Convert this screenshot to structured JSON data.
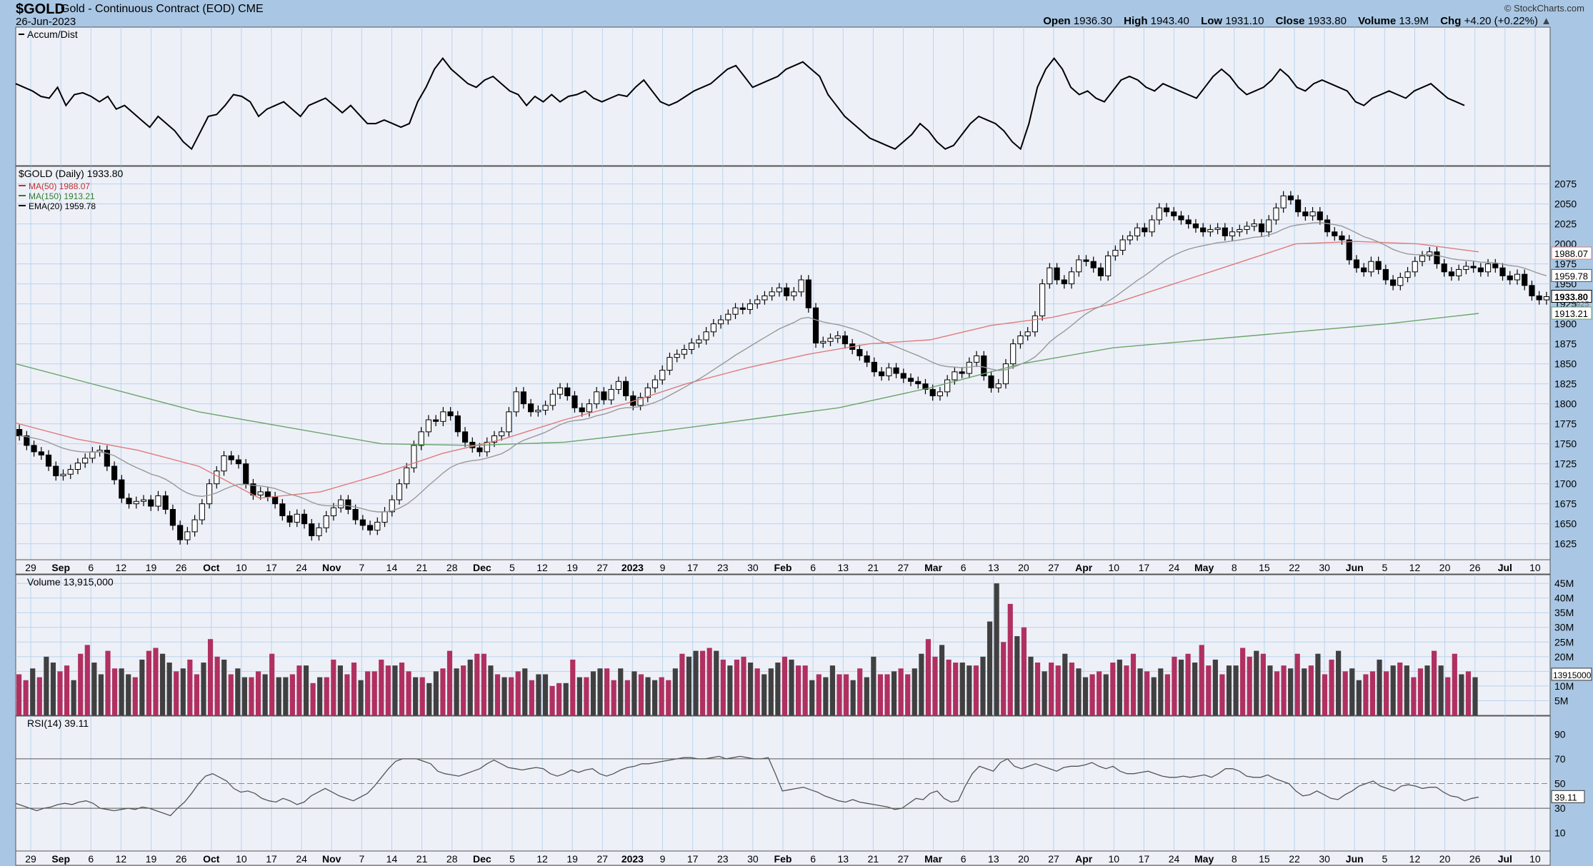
{
  "header": {
    "symbol": "$GOLD",
    "name": "Gold - Continuous Contract (EOD)",
    "exchange": "CME",
    "date": "26-Jun-2023",
    "watermark": "© StockCharts.com",
    "open_label": "Open",
    "open": "1936.30",
    "high_label": "High",
    "high": "1943.40",
    "low_label": "Low",
    "low": "1931.10",
    "close_label": "Close",
    "close": "1933.80",
    "volume_label": "Volume",
    "volume": "13.9M",
    "chg_label": "Chg",
    "chg": "+4.20 (+0.22%)",
    "chg_arrow": "up-arrow-icon"
  },
  "colors": {
    "background": "#a9c7e4",
    "panel": "#eef0f8",
    "grid": "#b9d4ec",
    "ma50": "#e07a7a",
    "ma150": "#6aa56a",
    "ema20": "#999999",
    "vol_up": "#b03060",
    "vol_down": "#404040"
  },
  "chart_data": {
    "type": "candlestick",
    "x_ticks": [
      "29",
      "Sep",
      "6",
      "12",
      "19",
      "26",
      "Oct",
      "10",
      "17",
      "24",
      "Nov",
      "7",
      "14",
      "21",
      "28",
      "Dec",
      "5",
      "12",
      "19",
      "27",
      "2023",
      "9",
      "17",
      "23",
      "30",
      "Feb",
      "6",
      "13",
      "21",
      "27",
      "Mar",
      "6",
      "13",
      "20",
      "27",
      "Apr",
      "10",
      "17",
      "24",
      "May",
      "8",
      "15",
      "22",
      "30",
      "Jun",
      "5",
      "12",
      "20",
      "26",
      "Jul",
      "10"
    ],
    "price_panel": {
      "title": "$GOLD (Daily) 1933.80",
      "legend": [
        {
          "label": "MA(50) 1988.07",
          "color": "#c03030"
        },
        {
          "label": "MA(150) 1913.21",
          "color": "#2e7d2e"
        },
        {
          "label": "EMA(20) 1959.78",
          "color": "#000000"
        }
      ],
      "y_ticks": [
        "2075",
        "2050",
        "2025",
        "2000",
        "1975",
        "1950",
        "1925",
        "1900",
        "1875",
        "1850",
        "1825",
        "1800",
        "1775",
        "1750",
        "1725",
        "1700",
        "1675",
        "1650",
        "1625"
      ],
      "ylim": [
        1614,
        2088
      ],
      "last_price": "1933.80",
      "ma50_label": "1988.07",
      "ema20_label": "1959.78",
      "ma150_label": "1913.21",
      "extra_label": "1925",
      "closes": [
        1760,
        1748,
        1740,
        1736,
        1722,
        1710,
        1712,
        1718,
        1726,
        1732,
        1740,
        1742,
        1722,
        1705,
        1682,
        1675,
        1678,
        1680,
        1672,
        1685,
        1668,
        1648,
        1630,
        1640,
        1655,
        1675,
        1700,
        1716,
        1735,
        1730,
        1725,
        1700,
        1686,
        1690,
        1684,
        1675,
        1660,
        1652,
        1662,
        1650,
        1635,
        1645,
        1660,
        1670,
        1680,
        1668,
        1655,
        1648,
        1642,
        1652,
        1665,
        1680,
        1700,
        1720,
        1748,
        1765,
        1780,
        1778,
        1790,
        1785,
        1765,
        1752,
        1745,
        1740,
        1752,
        1760,
        1765,
        1790,
        1815,
        1800,
        1790,
        1792,
        1798,
        1812,
        1820,
        1810,
        1795,
        1790,
        1800,
        1815,
        1805,
        1818,
        1828,
        1810,
        1798,
        1808,
        1820,
        1830,
        1842,
        1858,
        1862,
        1868,
        1876,
        1880,
        1890,
        1900,
        1905,
        1912,
        1920,
        1918,
        1925,
        1930,
        1935,
        1940,
        1945,
        1935,
        1940,
        1955,
        1920,
        1876,
        1878,
        1882,
        1885,
        1875,
        1868,
        1860,
        1852,
        1840,
        1835,
        1845,
        1838,
        1832,
        1828,
        1825,
        1818,
        1810,
        1815,
        1830,
        1840,
        1838,
        1852,
        1860,
        1835,
        1820,
        1825,
        1850,
        1875,
        1885,
        1890,
        1910,
        1950,
        1970,
        1955,
        1950,
        1965,
        1980,
        1978,
        1970,
        1960,
        1985,
        1992,
        2005,
        2010,
        2020,
        2015,
        2030,
        2045,
        2040,
        2035,
        2030,
        2025,
        2020,
        2015,
        2018,
        2020,
        2010,
        2015,
        2018,
        2022,
        2025,
        2015,
        2030,
        2045,
        2060,
        2055,
        2040,
        2035,
        2040,
        2030,
        2015,
        2010,
        2005,
        1980,
        1970,
        1965,
        1978,
        1968,
        1955,
        1948,
        1958,
        1965,
        1978,
        1985,
        1990,
        1975,
        1965,
        1960,
        1968,
        1972,
        1970,
        1965,
        1975,
        1970,
        1960,
        1955,
        1962,
        1948,
        1935,
        1930,
        1934
      ],
      "ma50_sample": [
        [
          0,
          1776
        ],
        [
          40,
          1756
        ],
        [
          80,
          1742
        ],
        [
          120,
          1722
        ],
        [
          160,
          1682
        ],
        [
          200,
          1690
        ],
        [
          240,
          1712
        ],
        [
          280,
          1738
        ],
        [
          320,
          1756
        ],
        [
          360,
          1780
        ],
        [
          400,
          1800
        ],
        [
          440,
          1825
        ],
        [
          480,
          1845
        ],
        [
          520,
          1862
        ],
        [
          560,
          1875
        ],
        [
          600,
          1880
        ],
        [
          640,
          1898
        ],
        [
          680,
          1908
        ],
        [
          720,
          1925
        ],
        [
          760,
          1950
        ],
        [
          800,
          1975
        ],
        [
          840,
          2000
        ],
        [
          880,
          2003
        ],
        [
          920,
          2000
        ],
        [
          960,
          1990
        ]
      ],
      "ma150_sample": [
        [
          0,
          1850
        ],
        [
          60,
          1820
        ],
        [
          120,
          1790
        ],
        [
          180,
          1770
        ],
        [
          240,
          1750
        ],
        [
          300,
          1748
        ],
        [
          360,
          1752
        ],
        [
          420,
          1765
        ],
        [
          480,
          1780
        ],
        [
          540,
          1795
        ],
        [
          600,
          1820
        ],
        [
          660,
          1850
        ],
        [
          720,
          1870
        ],
        [
          780,
          1880
        ],
        [
          840,
          1890
        ],
        [
          900,
          1900
        ],
        [
          960,
          1913
        ]
      ]
    },
    "accum_panel": {
      "title": "Accum/Dist",
      "values": [
        62,
        60,
        58,
        55,
        54,
        60,
        50,
        56,
        57,
        55,
        52,
        55,
        48,
        50,
        46,
        42,
        38,
        44,
        40,
        36,
        30,
        26,
        35,
        44,
        45,
        50,
        56,
        55,
        52,
        44,
        48,
        50,
        52,
        48,
        44,
        50,
        52,
        54,
        50,
        46,
        50,
        45,
        40,
        40,
        42,
        40,
        38,
        40,
        52,
        60,
        70,
        76,
        70,
        66,
        62,
        60,
        64,
        66,
        62,
        58,
        56,
        50,
        55,
        52,
        56,
        52,
        55,
        56,
        58,
        54,
        52,
        54,
        56,
        55,
        60,
        64,
        58,
        52,
        50,
        52,
        55,
        58,
        60,
        62,
        66,
        70,
        72,
        66,
        60,
        62,
        64,
        66,
        70,
        72,
        74,
        70,
        66,
        56,
        50,
        44,
        40,
        36,
        32,
        30,
        28,
        26,
        30,
        34,
        40,
        36,
        30,
        26,
        28,
        34,
        40,
        44,
        42,
        40,
        36,
        30,
        26,
        40,
        60,
        70,
        76,
        70,
        60,
        56,
        58,
        54,
        52,
        58,
        64,
        66,
        64,
        60,
        58,
        62,
        60,
        58,
        56,
        54,
        60,
        66,
        70,
        66,
        60,
        56,
        58,
        60,
        64,
        70,
        66,
        60,
        58,
        62,
        64,
        62,
        60,
        58,
        52,
        50,
        54,
        56,
        58,
        56,
        54,
        58,
        60,
        62,
        58,
        54,
        52,
        50
      ],
      "ylim": [
        20,
        90
      ]
    },
    "volume_panel": {
      "title": "Volume 13,915,000",
      "y_ticks": [
        "45M",
        "40M",
        "35M",
        "30M",
        "25M",
        "20M",
        "15M",
        "10M",
        "5M"
      ],
      "last_label": "13915000",
      "ylim": [
        0,
        46000000
      ],
      "values": [
        14,
        12,
        16,
        13,
        20,
        18,
        15,
        17,
        12,
        21,
        24,
        18,
        14,
        22,
        16,
        16,
        14,
        13,
        19,
        22,
        23,
        21,
        18,
        15,
        16,
        19,
        14,
        18,
        26,
        20,
        19,
        14,
        16,
        13,
        13,
        15,
        14,
        21,
        13,
        13,
        14,
        17,
        17,
        11,
        13,
        13,
        19,
        17,
        14,
        18,
        12,
        15,
        15,
        19,
        17,
        17,
        18,
        15,
        13,
        13,
        11,
        15,
        16,
        22,
        16,
        17,
        19,
        21,
        21,
        17,
        14,
        13,
        13,
        15,
        16,
        12,
        14,
        14,
        10,
        11,
        11,
        19,
        13,
        13,
        15,
        16,
        16,
        12,
        16,
        12,
        15,
        14,
        13,
        12,
        13,
        12,
        16,
        21,
        20,
        22,
        22,
        23,
        22,
        19,
        17,
        19,
        20,
        18,
        16,
        14,
        16,
        18,
        20,
        19,
        17,
        17,
        12,
        14,
        13,
        17,
        14,
        14,
        12,
        16,
        13,
        20,
        14,
        14,
        15,
        16,
        14,
        16,
        21,
        26,
        20,
        24,
        19,
        18,
        18,
        17,
        17,
        20,
        32,
        45,
        25,
        38,
        27,
        30,
        20,
        18,
        15,
        18,
        17,
        21,
        18,
        16,
        13,
        14,
        15,
        14,
        18,
        19,
        17,
        21,
        16,
        15,
        13,
        16,
        14,
        20,
        19,
        21,
        18,
        24,
        17,
        19,
        14,
        17,
        17,
        23,
        20,
        22,
        21,
        17,
        15,
        17,
        16,
        21,
        16,
        17,
        21,
        14,
        19,
        22,
        15,
        16,
        12,
        14,
        15,
        19,
        15,
        17,
        18,
        17,
        13,
        16,
        17,
        22,
        17,
        13,
        21,
        14,
        15,
        13
      ],
      "colors_up": [
        1,
        1,
        0,
        1,
        0,
        0,
        1,
        1,
        0,
        1,
        1,
        0,
        0,
        1,
        1,
        0,
        0,
        1,
        0,
        1,
        1,
        0,
        0,
        1,
        0,
        1,
        1,
        0,
        1,
        1,
        0,
        1,
        0,
        0,
        1,
        1,
        0,
        1,
        0,
        0,
        1,
        1,
        0,
        1,
        0,
        1,
        1,
        0,
        1,
        1,
        0,
        1,
        1,
        1,
        1,
        0,
        1,
        1,
        0,
        1,
        0,
        0,
        1,
        1,
        0,
        1,
        0,
        1,
        1,
        0,
        1,
        0,
        1,
        1,
        0,
        1,
        0,
        0,
        1,
        1,
        0,
        1,
        0,
        1,
        0,
        0,
        1,
        1,
        0,
        1,
        0,
        1,
        0,
        0,
        1,
        1,
        0,
        1,
        0,
        0,
        1,
        1,
        0,
        1,
        0,
        1,
        1,
        0,
        1,
        0,
        0,
        0,
        1,
        0,
        1,
        1,
        0,
        1,
        0,
        0,
        1,
        1,
        0,
        1,
        0,
        0,
        1,
        1,
        0,
        1,
        1,
        0,
        0,
        1,
        1,
        0,
        1,
        1,
        0,
        0,
        1,
        0,
        0,
        0,
        1,
        1,
        0,
        1,
        0,
        1,
        0,
        1,
        1,
        0,
        1,
        0,
        0,
        1,
        1,
        0,
        1,
        0,
        1,
        1,
        0,
        1,
        0,
        0,
        1,
        1,
        0,
        1,
        0,
        1,
        1,
        0,
        1,
        0,
        0,
        1,
        1,
        0,
        1,
        0,
        1,
        1,
        0,
        1,
        0,
        1,
        0,
        1,
        1,
        0,
        1,
        0,
        0,
        1,
        1,
        0,
        1,
        0,
        1,
        0,
        1,
        1,
        0,
        1,
        0,
        1,
        1,
        0,
        1,
        0
      ]
    },
    "rsi_panel": {
      "title": "RSI(14) 39.11",
      "y_ticks": [
        "90",
        "70",
        "50",
        "30",
        "10"
      ],
      "last_label": "39.11",
      "ylim": [
        0,
        100
      ],
      "values": [
        34,
        32,
        30,
        28,
        30,
        31,
        33,
        34,
        33,
        35,
        36,
        34,
        30,
        29,
        28,
        29,
        30,
        29,
        31,
        30,
        28,
        26,
        24,
        30,
        35,
        42,
        50,
        56,
        58,
        55,
        52,
        46,
        43,
        44,
        42,
        38,
        36,
        35,
        38,
        36,
        33,
        35,
        40,
        43,
        46,
        43,
        40,
        38,
        36,
        39,
        42,
        48,
        55,
        62,
        68,
        70,
        70,
        70,
        68,
        66,
        60,
        58,
        57,
        56,
        58,
        60,
        62,
        66,
        69,
        66,
        63,
        62,
        61,
        62,
        63,
        62,
        58,
        56,
        58,
        61,
        59,
        61,
        62,
        58,
        56,
        58,
        61,
        63,
        64,
        66,
        66,
        67,
        68,
        69,
        70,
        71,
        71,
        70,
        70,
        71,
        72,
        70,
        71,
        72,
        71,
        70,
        70,
        71,
        58,
        44,
        45,
        46,
        47,
        45,
        43,
        40,
        38,
        36,
        35,
        37,
        35,
        34,
        33,
        32,
        31,
        29,
        30,
        34,
        38,
        37,
        42,
        44,
        38,
        35,
        36,
        48,
        58,
        64,
        62,
        60,
        67,
        70,
        64,
        62,
        64,
        66,
        64,
        62,
        60,
        63,
        64,
        64,
        65,
        67,
        64,
        62,
        64,
        60,
        58,
        58,
        59,
        60,
        58,
        56,
        55,
        55,
        56,
        55,
        56,
        57,
        55,
        58,
        62,
        62,
        60,
        56,
        55,
        55,
        57,
        54,
        52,
        50,
        44,
        40,
        41,
        44,
        41,
        38,
        37,
        41,
        44,
        48,
        50,
        52,
        48,
        46,
        44,
        48,
        49,
        48,
        46,
        47,
        47,
        43,
        40,
        39,
        36,
        38,
        39
      ],
      "levels": [
        70,
        50,
        30
      ]
    }
  }
}
